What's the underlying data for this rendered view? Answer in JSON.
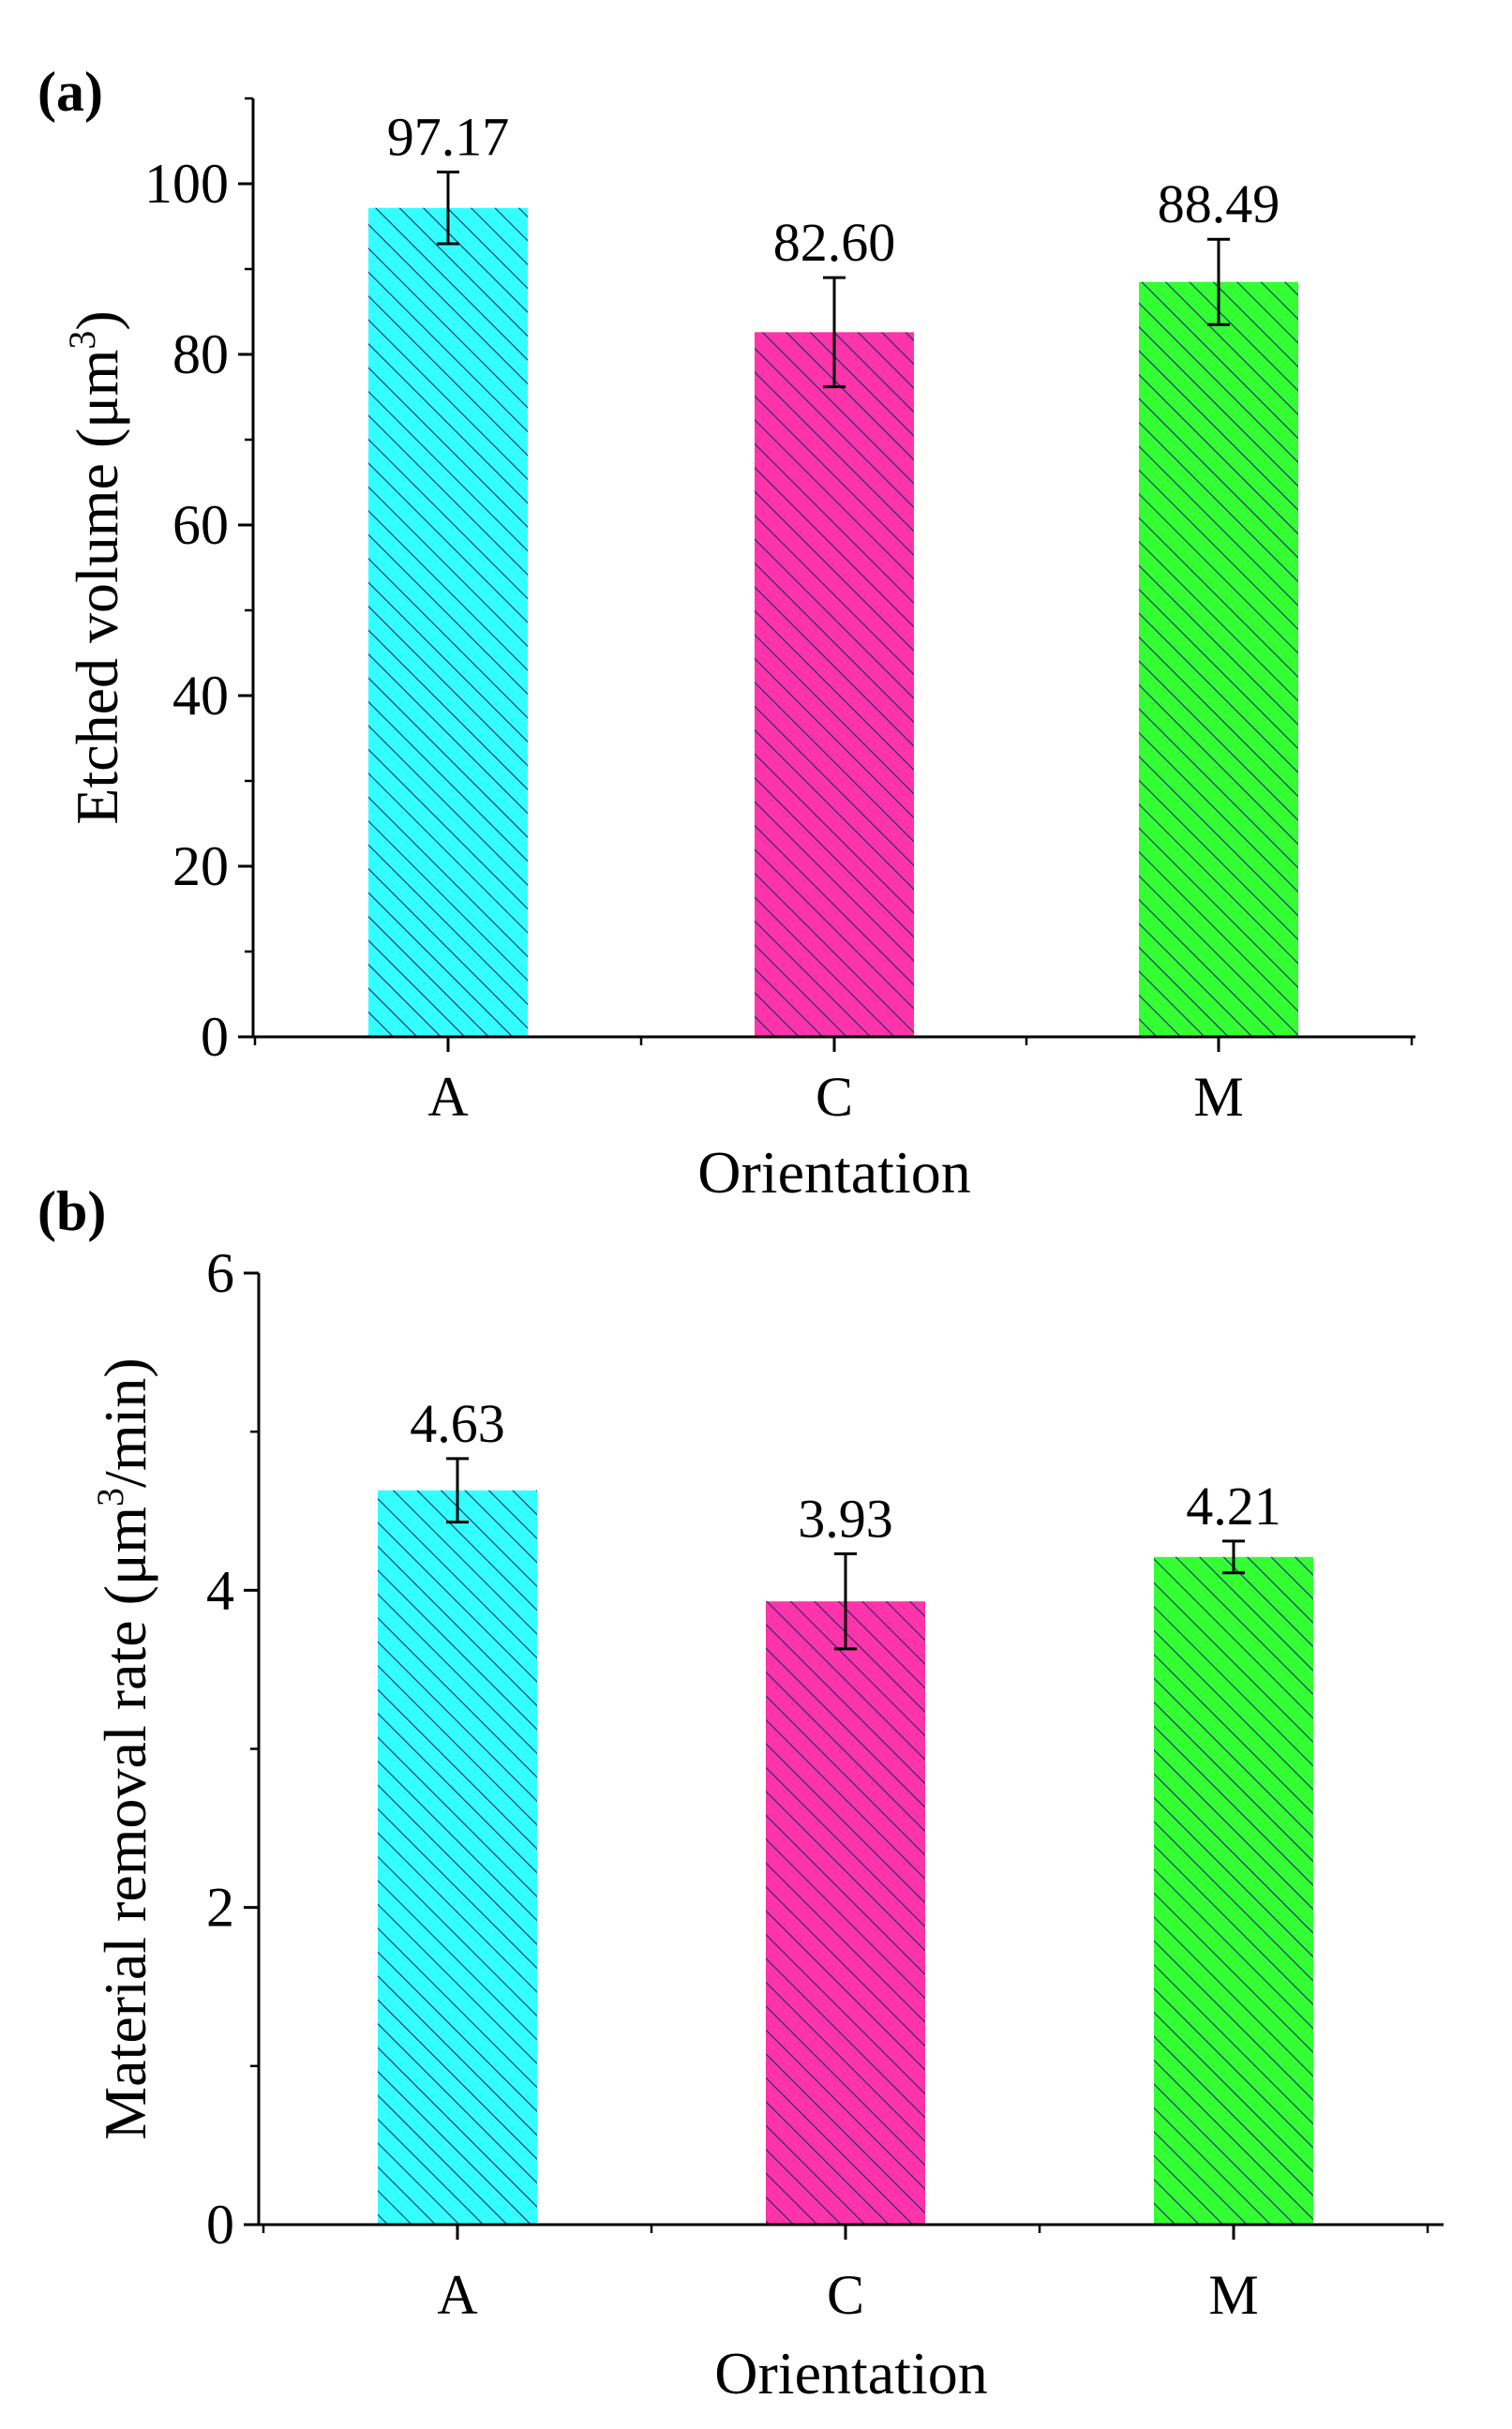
{
  "chart_data": [
    {
      "type": "bar",
      "panel_label": "(a)",
      "categories": [
        "A",
        "C",
        "M"
      ],
      "values": [
        97.17,
        82.6,
        88.49
      ],
      "value_labels": [
        "97.17",
        "82.60",
        "88.49"
      ],
      "error": [
        4.2,
        6.4,
        5.0
      ],
      "colors": [
        "#33ffff",
        "#ff33aa",
        "#33ff33"
      ],
      "hatch_color": "#1a2a6b",
      "xlabel": "Orientation",
      "ylabel_main": "Etched volume (μm",
      "ylabel_sup": "3",
      "ylabel_tail": ")",
      "ylim": [
        0,
        110
      ],
      "yticks": [
        0,
        20,
        40,
        60,
        80,
        100
      ],
      "ytick_labels": [
        "0",
        "20",
        "40",
        "60",
        "80",
        "100"
      ],
      "minor_ytick_step": 10,
      "grid": false
    },
    {
      "type": "bar",
      "panel_label": "(b)",
      "categories": [
        "A",
        "C",
        "M"
      ],
      "values": [
        4.63,
        3.93,
        4.21
      ],
      "value_labels": [
        "4.63",
        "3.93",
        "4.21"
      ],
      "error": [
        0.2,
        0.3,
        0.1
      ],
      "colors": [
        "#33ffff",
        "#ff33aa",
        "#33ff33"
      ],
      "hatch_color": "#1a2a6b",
      "xlabel": "Orientation",
      "ylabel_main": "Material removal rate (μm",
      "ylabel_sup": "3",
      "ylabel_tail": "/min)",
      "ylim": [
        0,
        6
      ],
      "yticks": [
        0,
        2,
        4,
        6
      ],
      "ytick_labels": [
        "0",
        "2",
        "4",
        "6"
      ],
      "minor_ytick_step": 1,
      "grid": false
    }
  ]
}
